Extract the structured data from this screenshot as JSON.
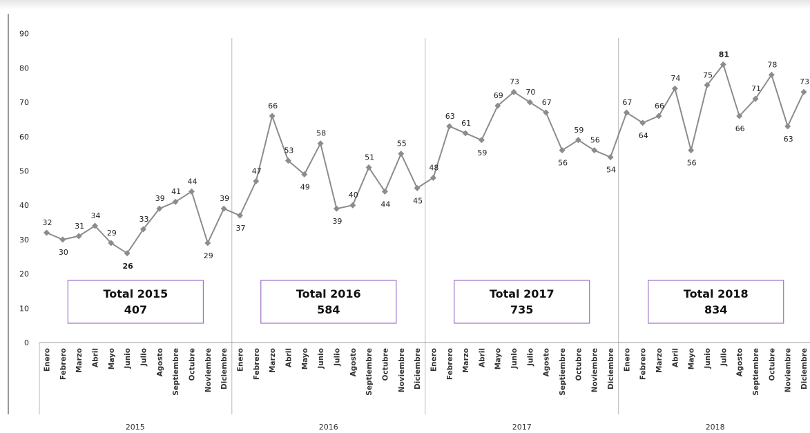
{
  "chart_data": {
    "type": "line",
    "title": "",
    "xlabel": "",
    "ylabel": "",
    "ylim": [
      0,
      90
    ],
    "yticks": [
      0,
      10,
      20,
      30,
      40,
      50,
      60,
      70,
      80,
      90
    ],
    "grid": false,
    "months": [
      "Enero",
      "Febrero",
      "Marzo",
      "Abril",
      "Mayo",
      "Junio",
      "Julio",
      "Agosto",
      "Septiembre",
      "Octubre",
      "Noviembre",
      "Diciembre"
    ],
    "years": [
      "2015",
      "2016",
      "2017",
      "2018"
    ],
    "values": [
      32,
      30,
      31,
      34,
      29,
      26,
      33,
      39,
      41,
      44,
      29,
      39,
      37,
      47,
      66,
      53,
      49,
      58,
      39,
      40,
      51,
      44,
      55,
      45,
      48,
      63,
      61,
      59,
      69,
      73,
      70,
      67,
      56,
      59,
      56,
      54,
      67,
      64,
      66,
      74,
      56,
      75,
      81,
      66,
      71,
      78,
      63,
      73
    ],
    "highlights": [
      {
        "index": 5,
        "color": "#2aa34a"
      },
      {
        "index": 42,
        "color": "#e0302f"
      }
    ],
    "line_color": "#8c8c8c",
    "marker_color": "#8c8c8c",
    "totals": [
      {
        "label": "Total 2015",
        "value": "407"
      },
      {
        "label": "Total 2016",
        "value": "584"
      },
      {
        "label": "Total 2017",
        "value": "735"
      },
      {
        "label": "Total 2018",
        "value": "834"
      }
    ],
    "total_box_border": "#9b72c7"
  }
}
